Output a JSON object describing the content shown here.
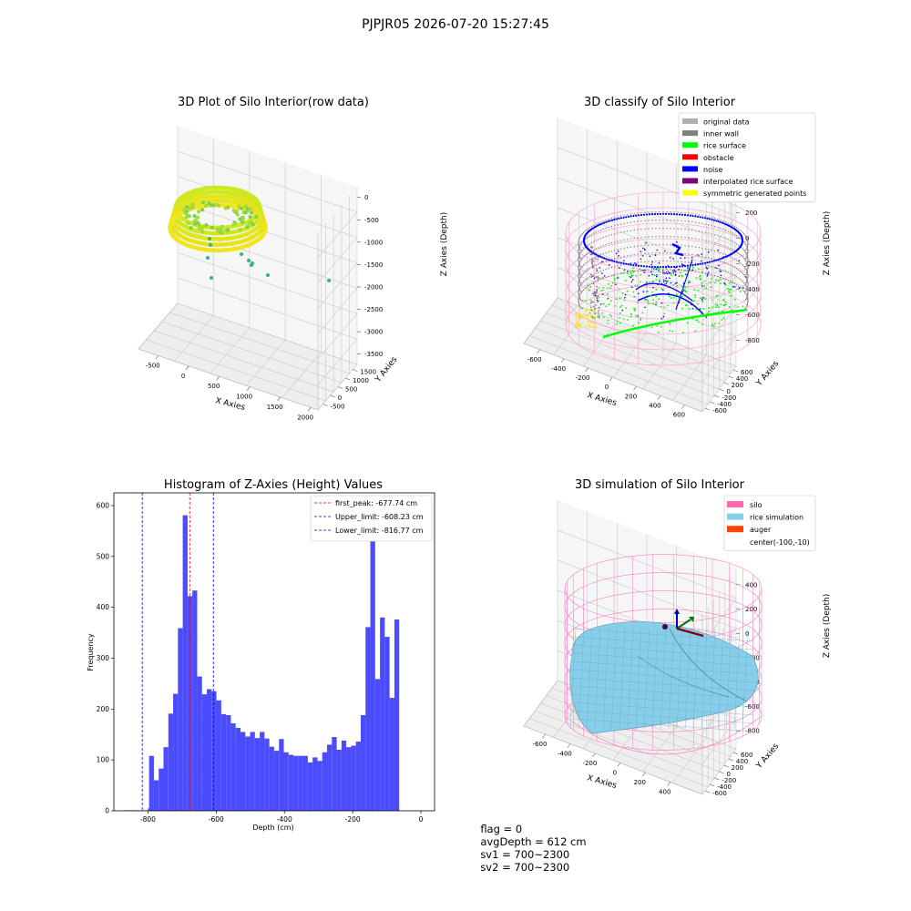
{
  "suptitle": "PJPJR05 2026-07-20 15:27:45",
  "footer": {
    "flag": "flag = 0",
    "avg_depth": "avgDepth = 612 cm",
    "sv1": "sv1 = 700~2300",
    "sv2": "sv2 = 700~2300"
  },
  "colors": {
    "histogram_bar": "#4c4cff",
    "first_peak_line": "#ff0000",
    "limit_line": "#0000ff",
    "original_data": "#b0b0b0",
    "inner_wall": "#808080",
    "rice_surface": "#00ff00",
    "obstacle": "#ff0000",
    "noise": "#0000ff",
    "interpolated_rice_surface": "#800080",
    "symmetric_generated_points": "#ffff00",
    "silo": "#ff69b4",
    "rice_simulation": "#87ceeb",
    "auger": "#ff4500"
  },
  "chart_data": [
    {
      "type": "scatter",
      "title": "3D Plot of Silo Interior(row data)",
      "xlabel": "X Axies",
      "ylabel": "Y Axies",
      "zlabel": "Z Axies (Depth)",
      "x_ticks": [
        "-500",
        "0",
        "500",
        "1000",
        "1500",
        "2000"
      ],
      "y_ticks": [
        "-500",
        "0",
        "500",
        "1000",
        "1500"
      ],
      "z_ticks": [
        "0",
        "-500",
        "-1000",
        "-1500",
        "-2000",
        "-2500",
        "-3000",
        "-3500"
      ],
      "grid": true
    },
    {
      "type": "scatter",
      "title": "3D classify of Silo Interior",
      "xlabel": "X Axies",
      "ylabel": "Y Axies",
      "zlabel": "Z Axies (Depth)",
      "x_ticks": [
        "-600",
        "-400",
        "-200",
        "0",
        "200",
        "400",
        "600"
      ],
      "y_ticks": [
        "-600",
        "-400",
        "-200",
        "0",
        "200",
        "400",
        "600"
      ],
      "z_ticks": [
        "200",
        "0",
        "-200",
        "-400",
        "-600",
        "-800"
      ],
      "z_ticks_hidden": [
        "400"
      ],
      "legend": [
        {
          "label": "original data",
          "color": "#b0b0b0"
        },
        {
          "label": "inner wall",
          "color": "#808080"
        },
        {
          "label": "rice surface",
          "color": "#00ff00"
        },
        {
          "label": "obstacle",
          "color": "#ff0000"
        },
        {
          "label": "noise",
          "color": "#0000ff"
        },
        {
          "label": "interpolated rice surface",
          "color": "#800080"
        },
        {
          "label": "symmetric generated points",
          "color": "#ffff00"
        }
      ],
      "legend_placement": "top-right",
      "grid": true
    },
    {
      "type": "bar",
      "title": "Histogram of Z-Axies (Height) Values",
      "xlabel": "Depth (cm)",
      "ylabel": "Frequency",
      "xlim": [
        -900,
        40
      ],
      "ylim": [
        0,
        625
      ],
      "x_ticks": [
        -800,
        -600,
        -400,
        -200,
        0
      ],
      "y_ticks": [
        0,
        100,
        200,
        300,
        400,
        500,
        600
      ],
      "bin_width": 14.1,
      "bins": [
        {
          "start": -870,
          "end": -800,
          "value": 1
        },
        {
          "start": -800,
          "end": -796.8,
          "value": 5
        },
        {
          "start": -796.8,
          "value": 108
        },
        {
          "start": -782.7,
          "value": 60
        },
        {
          "start": -768.6,
          "value": 83
        },
        {
          "start": -754.5,
          "value": 125
        },
        {
          "start": -740.4,
          "value": 191
        },
        {
          "start": -726.3,
          "value": 230
        },
        {
          "start": -712.2,
          "value": 359
        },
        {
          "start": -698.1,
          "value": 581
        },
        {
          "start": -684.0,
          "value": 422
        },
        {
          "start": -669.9,
          "value": 433
        },
        {
          "start": -655.8,
          "value": 264
        },
        {
          "start": -641.7,
          "value": 229
        },
        {
          "start": -627.6,
          "value": 239
        },
        {
          "start": -613.5,
          "value": 235
        },
        {
          "start": -599.4,
          "value": 217
        },
        {
          "start": -585.3,
          "value": 190
        },
        {
          "start": -571.2,
          "value": 188
        },
        {
          "start": -557.1,
          "value": 172
        },
        {
          "start": -543.0,
          "value": 163
        },
        {
          "start": -528.9,
          "value": 155
        },
        {
          "start": -514.8,
          "value": 146
        },
        {
          "start": -500.7,
          "value": 155
        },
        {
          "start": -486.6,
          "value": 143
        },
        {
          "start": -472.5,
          "value": 155
        },
        {
          "start": -458.4,
          "value": 142
        },
        {
          "start": -444.3,
          "value": 126
        },
        {
          "start": -430.2,
          "value": 118
        },
        {
          "start": -416.1,
          "value": 141
        },
        {
          "start": -402.0,
          "value": 115
        },
        {
          "start": -387.9,
          "value": 110
        },
        {
          "start": -373.8,
          "value": 108
        },
        {
          "start": -359.7,
          "value": 108
        },
        {
          "start": -345.6,
          "value": 108
        },
        {
          "start": -331.5,
          "value": 95
        },
        {
          "start": -317.4,
          "value": 105
        },
        {
          "start": -303.3,
          "value": 98
        },
        {
          "start": -289.2,
          "value": 115
        },
        {
          "start": -275.1,
          "value": 130
        },
        {
          "start": -261.0,
          "value": 145
        },
        {
          "start": -246.9,
          "value": 120
        },
        {
          "start": -232.8,
          "value": 138
        },
        {
          "start": -218.7,
          "value": 125
        },
        {
          "start": -204.6,
          "value": 128
        },
        {
          "start": -190.5,
          "value": 136
        },
        {
          "start": -176.4,
          "value": 188
        },
        {
          "start": -162.3,
          "value": 361
        },
        {
          "start": -148.2,
          "value": 587
        },
        {
          "start": -134.1,
          "value": 259
        },
        {
          "start": -120.0,
          "value": 380
        },
        {
          "start": -105.9,
          "value": 342
        },
        {
          "start": -91.8,
          "value": 222
        },
        {
          "start": -77.7,
          "value": 376
        }
      ],
      "lines": [
        {
          "label": "first_peak: -677.74 cm",
          "x": -677.74,
          "color": "#ff0000",
          "style": "dashed"
        },
        {
          "label": "Upper_limit: -608.23 cm",
          "x": -608.23,
          "color": "#0000ff",
          "style": "dashed"
        },
        {
          "label": "Lower_limit: -816.77 cm",
          "x": -816.77,
          "color": "#0000ff",
          "style": "dashed"
        }
      ],
      "legend_placement": "top-right",
      "grid": false
    },
    {
      "type": "scatter",
      "title": "3D simulation of Silo Interior",
      "xlabel": "X Axies",
      "ylabel": "Y Axies",
      "zlabel": "Z Axies (Depth)",
      "x_ticks": [
        "-600",
        "-400",
        "-200",
        "0",
        "200",
        "400"
      ],
      "y_ticks": [
        "-600",
        "-400",
        "-200",
        "0",
        "200",
        "400",
        "600"
      ],
      "z_ticks": [
        "400",
        "200",
        "0",
        "-200",
        "-400",
        "-600",
        "-800"
      ],
      "legend": [
        {
          "label": "silo",
          "color": "#ff69b4"
        },
        {
          "label": "rice simulation",
          "color": "#87ceeb"
        },
        {
          "label": "auger",
          "color": "#ff4500"
        },
        {
          "label": "center(-100,-10)",
          "color": ""
        }
      ],
      "legend_placement": "top-right",
      "grid": true
    }
  ]
}
